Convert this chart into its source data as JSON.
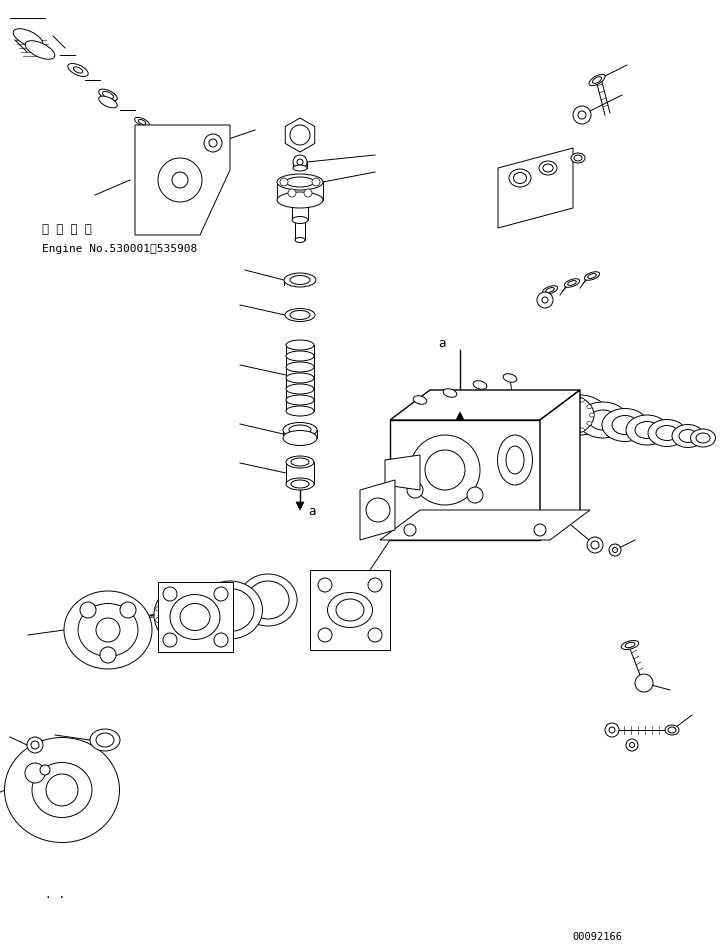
{
  "background_color": "#ffffff",
  "line_color": "#000000",
  "annotation_text_1": "適 用 号 機",
  "annotation_text_2": "Engine No.530001～535908",
  "bottom_left_text": ". .",
  "bottom_right_text": "00092166",
  "label_a1": "a",
  "label_a2": "a"
}
